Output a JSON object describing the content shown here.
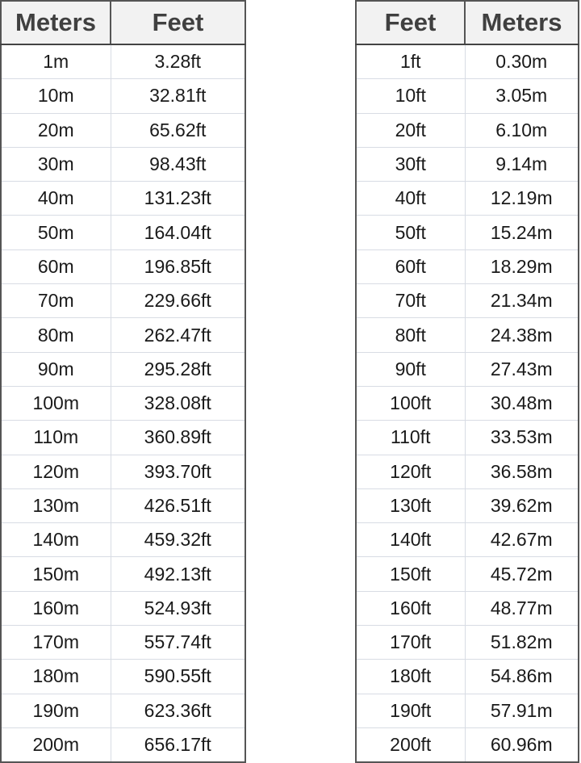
{
  "meters_to_feet": {
    "headers": [
      "Meters",
      "Feet"
    ],
    "rows": [
      [
        "1m",
        "3.28ft"
      ],
      [
        "10m",
        "32.81ft"
      ],
      [
        "20m",
        "65.62ft"
      ],
      [
        "30m",
        "98.43ft"
      ],
      [
        "40m",
        "131.23ft"
      ],
      [
        "50m",
        "164.04ft"
      ],
      [
        "60m",
        "196.85ft"
      ],
      [
        "70m",
        "229.66ft"
      ],
      [
        "80m",
        "262.47ft"
      ],
      [
        "90m",
        "295.28ft"
      ],
      [
        "100m",
        "328.08ft"
      ],
      [
        "110m",
        "360.89ft"
      ],
      [
        "120m",
        "393.70ft"
      ],
      [
        "130m",
        "426.51ft"
      ],
      [
        "140m",
        "459.32ft"
      ],
      [
        "150m",
        "492.13ft"
      ],
      [
        "160m",
        "524.93ft"
      ],
      [
        "170m",
        "557.74ft"
      ],
      [
        "180m",
        "590.55ft"
      ],
      [
        "190m",
        "623.36ft"
      ],
      [
        "200m",
        "656.17ft"
      ]
    ]
  },
  "feet_to_meters": {
    "headers": [
      "Feet",
      "Meters"
    ],
    "rows": [
      [
        "1ft",
        "0.30m"
      ],
      [
        "10ft",
        "3.05m"
      ],
      [
        "20ft",
        "6.10m"
      ],
      [
        "30ft",
        "9.14m"
      ],
      [
        "40ft",
        "12.19m"
      ],
      [
        "50ft",
        "15.24m"
      ],
      [
        "60ft",
        "18.29m"
      ],
      [
        "70ft",
        "21.34m"
      ],
      [
        "80ft",
        "24.38m"
      ],
      [
        "90ft",
        "27.43m"
      ],
      [
        "100ft",
        "30.48m"
      ],
      [
        "110ft",
        "33.53m"
      ],
      [
        "120ft",
        "36.58m"
      ],
      [
        "130ft",
        "39.62m"
      ],
      [
        "140ft",
        "42.67m"
      ],
      [
        "150ft",
        "45.72m"
      ],
      [
        "160ft",
        "48.77m"
      ],
      [
        "170ft",
        "51.82m"
      ],
      [
        "180ft",
        "54.86m"
      ],
      [
        "190ft",
        "57.91m"
      ],
      [
        "200ft",
        "60.96m"
      ]
    ]
  }
}
